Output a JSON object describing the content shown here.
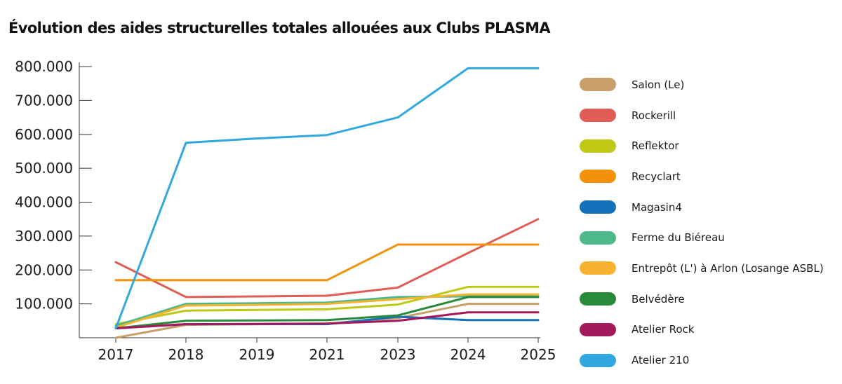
{
  "page": {
    "title": "Évolution des aides structurelles totales allouées aux Clubs PLASMA"
  },
  "chart_data": {
    "type": "line",
    "title": "Évolution des aides structurelles totales allouées aux Clubs PLASMA",
    "xlabel": "",
    "ylabel": "",
    "categories": [
      "2017",
      "2018",
      "2019",
      "2021",
      "2023",
      "2024",
      "2025"
    ],
    "ylim": [
      0,
      800000
    ],
    "yticks": [
      100000,
      200000,
      300000,
      400000,
      500000,
      600000,
      700000,
      800000
    ],
    "ytick_labels": [
      "100.000",
      "200.000",
      "300.000",
      "400.000",
      "500.000",
      "600.000",
      "700.000",
      "800.000"
    ],
    "grid": false,
    "legend_position": "right",
    "series": [
      {
        "name": "Salon (Le)",
        "color": "#c89f6b",
        "values": [
          0,
          38000,
          40000,
          42000,
          58000,
          100000,
          100000
        ]
      },
      {
        "name": "Rockerill",
        "color": "#e05d55",
        "values": [
          223000,
          120000,
          122000,
          124000,
          148000,
          250000,
          350000
        ]
      },
      {
        "name": "Reflektor",
        "color": "#bfc815",
        "values": [
          40000,
          80000,
          82000,
          84000,
          98000,
          150000,
          150000
        ]
      },
      {
        "name": "Recyclart",
        "color": "#f39208",
        "values": [
          170000,
          170000,
          170000,
          170000,
          275000,
          275000,
          275000
        ]
      },
      {
        "name": "Magasin4",
        "color": "#1470b8",
        "values": [
          28000,
          40000,
          40000,
          40000,
          62000,
          52000,
          52000
        ]
      },
      {
        "name": "Ferme du Biéreau",
        "color": "#4db98a",
        "values": [
          35000,
          100000,
          102000,
          104000,
          120000,
          122000,
          122000
        ]
      },
      {
        "name": "Entrepôt (L') à Arlon (Losange ASBL)",
        "color": "#f7b22f",
        "values": [
          30000,
          95000,
          97000,
          100000,
          114000,
          128000,
          128000
        ]
      },
      {
        "name": "Belvédère",
        "color": "#2a8a3b",
        "values": [
          28000,
          50000,
          51000,
          52000,
          66000,
          120000,
          120000
        ]
      },
      {
        "name": "Atelier Rock",
        "color": "#a4185c",
        "values": [
          28000,
          40000,
          41000,
          42000,
          50000,
          75000,
          75000
        ]
      },
      {
        "name": "Atelier 210",
        "color": "#31a9df",
        "values": [
          28000,
          575000,
          588000,
          598000,
          650000,
          795000,
          795000
        ]
      }
    ]
  }
}
